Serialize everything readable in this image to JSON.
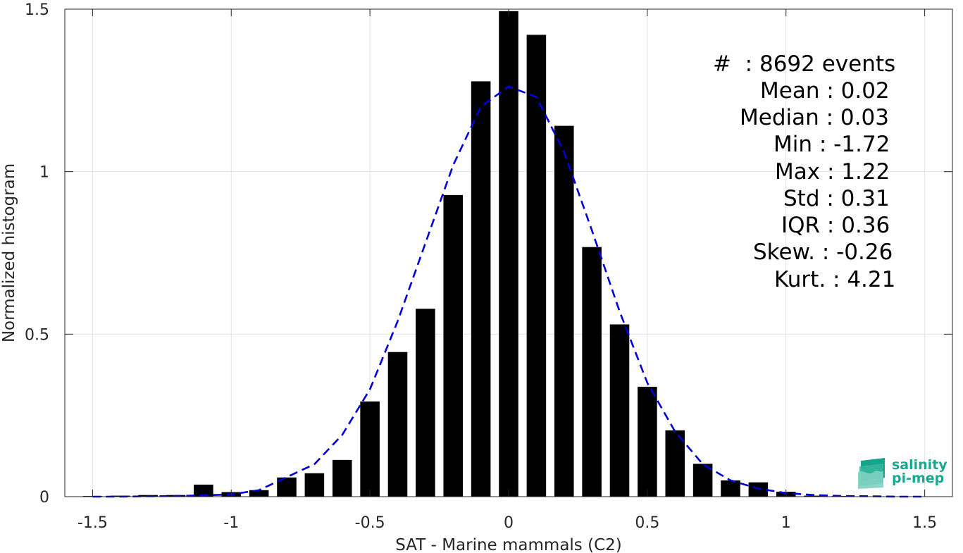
{
  "chart_data": {
    "type": "bar",
    "xlabel": "SAT - Marine mammals (C2)",
    "ylabel": "Normalized histogram",
    "xlim": [
      -1.6,
      1.6
    ],
    "ylim": [
      0,
      1.5
    ],
    "xticks": [
      -1.5,
      -1,
      -0.5,
      0,
      0.5,
      1,
      1.5
    ],
    "xtick_labels": [
      "-1.5",
      "-1",
      "-0.5",
      "0",
      "0.5",
      "1",
      "1.5"
    ],
    "yticks": [
      0,
      0.5,
      1,
      1.5
    ],
    "ytick_labels": [
      "0",
      "0.5",
      "1",
      "1.5"
    ],
    "grid": true,
    "bar_color": "#000000",
    "bar_width": 0.07,
    "bars": {
      "x": [
        -1.5,
        -1.4,
        -1.3,
        -1.2,
        -1.1,
        -1.0,
        -0.9,
        -0.8,
        -0.7,
        -0.6,
        -0.5,
        -0.4,
        -0.3,
        -0.2,
        -0.1,
        0.0,
        0.1,
        0.2,
        0.3,
        0.4,
        0.5,
        0.6,
        0.7,
        0.8,
        0.9,
        1.0,
        1.1,
        1.2,
        1.3
      ],
      "y": [
        0.002,
        0.003,
        0.005,
        0.005,
        0.037,
        0.014,
        0.02,
        0.059,
        0.072,
        0.113,
        0.293,
        0.445,
        0.578,
        0.928,
        1.278,
        1.494,
        1.421,
        1.141,
        0.768,
        0.53,
        0.338,
        0.204,
        0.101,
        0.05,
        0.044,
        0.015,
        0.003,
        0.002,
        0.001
      ]
    },
    "fit": {
      "type": "line",
      "style": "dashed",
      "color": "#0000dd",
      "x": [
        -1.5,
        -1.4,
        -1.3,
        -1.2,
        -1.1,
        -1.0,
        -0.9,
        -0.8,
        -0.7,
        -0.6,
        -0.5,
        -0.4,
        -0.3,
        -0.2,
        -0.1,
        0.0,
        0.1,
        0.2,
        0.3,
        0.4,
        0.5,
        0.6,
        0.7,
        0.8,
        0.9,
        1.0,
        1.1,
        1.2,
        1.3,
        1.4,
        1.5
      ],
      "y": [
        0.0,
        0.0,
        0.001,
        0.002,
        0.004,
        0.007,
        0.02,
        0.06,
        0.1,
        0.19,
        0.33,
        0.54,
        0.78,
        1.02,
        1.2,
        1.262,
        1.23,
        1.06,
        0.82,
        0.57,
        0.35,
        0.2,
        0.1,
        0.05,
        0.025,
        0.011,
        0.005,
        0.002,
        0.001,
        0.0,
        0.0
      ]
    }
  },
  "stats": {
    "events": "#  : 8692 events",
    "mean": "Mean : 0.02",
    "median": "Median : 0.03",
    "min": "Min : -1.72",
    "max": "Max : 1.22",
    "std": "Std : 0.31",
    "iqr": "IQR : 0.36",
    "skew": "Skew. : -0.26",
    "kurt": "Kurt. : 4.21"
  },
  "logo": {
    "line1": "salinity",
    "line2": "pi-mep",
    "color": "#1aa88f"
  }
}
